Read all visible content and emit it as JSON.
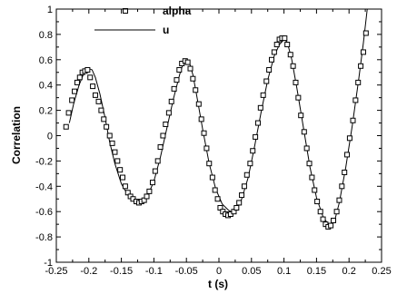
{
  "chart_data": {
    "type": "scatter",
    "title": "",
    "xlabel": "t (s)",
    "ylabel": "Correlation",
    "xlim": [
      -0.25,
      0.25
    ],
    "ylim": [
      -1,
      1
    ],
    "xticks": [
      "-0.25",
      "-0.2",
      "-0.15",
      "-0.1",
      "-0.05",
      "0",
      "0.05",
      "0.1",
      "0.15",
      "0.2",
      "0.25"
    ],
    "yticks": [
      "-1",
      "-0.8",
      "-0.6",
      "-0.4",
      "-0.2",
      "0",
      "0.2",
      "0.4",
      "0.6",
      "0.8",
      "1"
    ],
    "grid": false,
    "legend_position": "top-center",
    "series": [
      {
        "name": "alpha",
        "style": "markers",
        "marker": "open-square",
        "color": "#000000",
        "points": [
          [
            -0.235,
            0.07
          ],
          [
            -0.231,
            0.18
          ],
          [
            -0.226,
            0.28
          ],
          [
            -0.222,
            0.35
          ],
          [
            -0.218,
            0.42
          ],
          [
            -0.214,
            0.46
          ],
          [
            -0.21,
            0.5
          ],
          [
            -0.206,
            0.51
          ],
          [
            -0.202,
            0.52
          ],
          [
            -0.198,
            0.46
          ],
          [
            -0.194,
            0.39
          ],
          [
            -0.19,
            0.32
          ],
          [
            -0.185,
            0.27
          ],
          [
            -0.181,
            0.2
          ],
          [
            -0.177,
            0.13
          ],
          [
            -0.173,
            0.07
          ],
          [
            -0.168,
            0.0
          ],
          [
            -0.164,
            -0.06
          ],
          [
            -0.16,
            -0.13
          ],
          [
            -0.156,
            -0.2
          ],
          [
            -0.152,
            -0.27
          ],
          [
            -0.148,
            -0.33
          ],
          [
            -0.144,
            -0.4
          ],
          [
            -0.14,
            -0.45
          ],
          [
            -0.136,
            -0.48
          ],
          [
            -0.132,
            -0.5
          ],
          [
            -0.127,
            -0.52
          ],
          [
            -0.123,
            -0.53
          ],
          [
            -0.119,
            -0.52
          ],
          [
            -0.115,
            -0.51
          ],
          [
            -0.111,
            -0.48
          ],
          [
            -0.107,
            -0.44
          ],
          [
            -0.102,
            -0.37
          ],
          [
            -0.098,
            -0.28
          ],
          [
            -0.094,
            -0.2
          ],
          [
            -0.09,
            -0.09
          ],
          [
            -0.086,
            0.0
          ],
          [
            -0.082,
            0.09
          ],
          [
            -0.077,
            0.18
          ],
          [
            -0.073,
            0.27
          ],
          [
            -0.069,
            0.37
          ],
          [
            -0.065,
            0.44
          ],
          [
            -0.061,
            0.52
          ],
          [
            -0.057,
            0.57
          ],
          [
            -0.052,
            0.59
          ],
          [
            -0.048,
            0.58
          ],
          [
            -0.044,
            0.53
          ],
          [
            -0.04,
            0.45
          ],
          [
            -0.036,
            0.36
          ],
          [
            -0.031,
            0.25
          ],
          [
            -0.027,
            0.13
          ],
          [
            -0.023,
            0.02
          ],
          [
            -0.019,
            -0.1
          ],
          [
            -0.015,
            -0.22
          ],
          [
            -0.01,
            -0.33
          ],
          [
            -0.006,
            -0.43
          ],
          [
            -0.002,
            -0.5
          ],
          [
            0.002,
            -0.57
          ],
          [
            0.006,
            -0.6
          ],
          [
            0.01,
            -0.62
          ],
          [
            0.014,
            -0.63
          ],
          [
            0.018,
            -0.62
          ],
          [
            0.023,
            -0.6
          ],
          [
            0.027,
            -0.57
          ],
          [
            0.031,
            -0.53
          ],
          [
            0.035,
            -0.47
          ],
          [
            0.039,
            -0.4
          ],
          [
            0.043,
            -0.31
          ],
          [
            0.048,
            -0.22
          ],
          [
            0.052,
            -0.12
          ],
          [
            0.056,
            -0.01
          ],
          [
            0.06,
            0.1
          ],
          [
            0.064,
            0.22
          ],
          [
            0.068,
            0.32
          ],
          [
            0.073,
            0.43
          ],
          [
            0.077,
            0.52
          ],
          [
            0.081,
            0.6
          ],
          [
            0.085,
            0.66
          ],
          [
            0.089,
            0.72
          ],
          [
            0.093,
            0.76
          ],
          [
            0.097,
            0.77
          ],
          [
            0.101,
            0.77
          ],
          [
            0.105,
            0.72
          ],
          [
            0.11,
            0.64
          ],
          [
            0.114,
            0.55
          ],
          [
            0.118,
            0.42
          ],
          [
            0.122,
            0.3
          ],
          [
            0.126,
            0.16
          ],
          [
            0.131,
            0.03
          ],
          [
            0.135,
            -0.1
          ],
          [
            0.139,
            -0.22
          ],
          [
            0.143,
            -0.33
          ],
          [
            0.147,
            -0.43
          ],
          [
            0.151,
            -0.52
          ],
          [
            0.156,
            -0.6
          ],
          [
            0.16,
            -0.66
          ],
          [
            0.164,
            -0.7
          ],
          [
            0.168,
            -0.72
          ],
          [
            0.172,
            -0.71
          ],
          [
            0.176,
            -0.67
          ],
          [
            0.181,
            -0.6
          ],
          [
            0.185,
            -0.51
          ],
          [
            0.189,
            -0.4
          ],
          [
            0.193,
            -0.29
          ],
          [
            0.197,
            -0.15
          ],
          [
            0.201,
            -0.02
          ],
          [
            0.206,
            0.12
          ],
          [
            0.21,
            0.28
          ],
          [
            0.214,
            0.42
          ],
          [
            0.218,
            0.55
          ],
          [
            0.222,
            0.66
          ],
          [
            0.226,
            0.81
          ]
        ]
      },
      {
        "name": "u",
        "style": "line",
        "color": "#000000",
        "points": [
          [
            -0.23,
            0.1
          ],
          [
            -0.223,
            0.26
          ],
          [
            -0.215,
            0.4
          ],
          [
            -0.208,
            0.49
          ],
          [
            -0.2,
            0.53
          ],
          [
            -0.195,
            0.52
          ],
          [
            -0.19,
            0.46
          ],
          [
            -0.183,
            0.33
          ],
          [
            -0.175,
            0.14
          ],
          [
            -0.168,
            -0.05
          ],
          [
            -0.16,
            -0.22
          ],
          [
            -0.15,
            -0.38
          ],
          [
            -0.14,
            -0.47
          ],
          [
            -0.13,
            -0.52
          ],
          [
            -0.123,
            -0.54
          ],
          [
            -0.117,
            -0.53
          ],
          [
            -0.11,
            -0.48
          ],
          [
            -0.1,
            -0.36
          ],
          [
            -0.09,
            -0.17
          ],
          [
            -0.08,
            0.06
          ],
          [
            -0.07,
            0.29
          ],
          [
            -0.06,
            0.49
          ],
          [
            -0.055,
            0.57
          ],
          [
            -0.05,
            0.6
          ],
          [
            -0.045,
            0.57
          ],
          [
            -0.04,
            0.48
          ],
          [
            -0.035,
            0.34
          ],
          [
            -0.025,
            0.05
          ],
          [
            -0.015,
            -0.22
          ],
          [
            -0.005,
            -0.42
          ],
          [
            0.005,
            -0.54
          ],
          [
            0.015,
            -0.59
          ],
          [
            0.022,
            -0.61
          ],
          [
            0.028,
            -0.58
          ],
          [
            0.035,
            -0.5
          ],
          [
            0.045,
            -0.33
          ],
          [
            0.055,
            -0.08
          ],
          [
            0.065,
            0.19
          ],
          [
            0.075,
            0.44
          ],
          [
            0.085,
            0.63
          ],
          [
            0.093,
            0.72
          ],
          [
            0.1,
            0.76
          ],
          [
            0.105,
            0.74
          ],
          [
            0.112,
            0.6
          ],
          [
            0.12,
            0.37
          ],
          [
            0.13,
            0.06
          ],
          [
            0.14,
            -0.25
          ],
          [
            0.15,
            -0.49
          ],
          [
            0.16,
            -0.64
          ],
          [
            0.168,
            -0.7
          ],
          [
            0.173,
            -0.71
          ],
          [
            0.178,
            -0.67
          ],
          [
            0.185,
            -0.53
          ],
          [
            0.195,
            -0.25
          ],
          [
            0.205,
            0.08
          ],
          [
            0.215,
            0.45
          ],
          [
            0.222,
            0.73
          ],
          [
            0.228,
            1.0
          ]
        ]
      }
    ]
  }
}
